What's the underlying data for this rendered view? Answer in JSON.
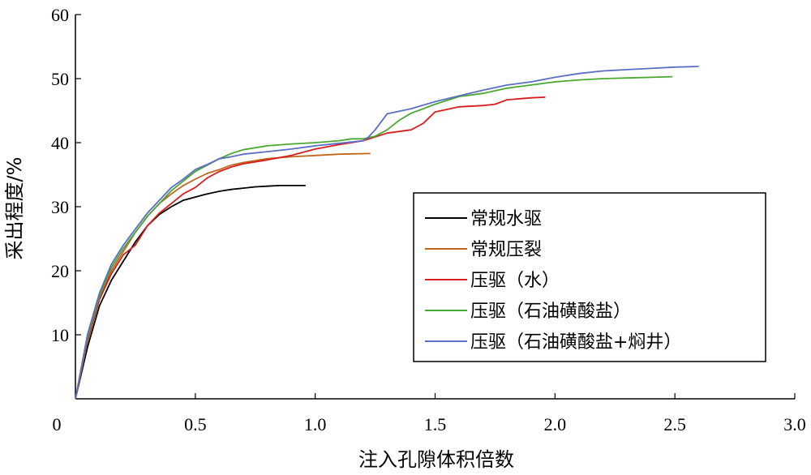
{
  "chart_data": {
    "type": "line",
    "xlabel": "注入孔隙体积倍数",
    "ylabel": "采出程度/%",
    "xlim": [
      0,
      3.0
    ],
    "ylim": [
      0,
      60
    ],
    "xticks": [
      "0",
      "0.5",
      "1.0",
      "1.5",
      "2.0",
      "2.5",
      "3.0"
    ],
    "xtick_values": [
      0,
      0.5,
      1.0,
      1.5,
      2.0,
      2.5,
      3.0
    ],
    "yticks": [
      "10",
      "20",
      "30",
      "40",
      "50",
      "60"
    ],
    "ytick_values": [
      10,
      20,
      30,
      40,
      50,
      60
    ],
    "grid": false,
    "legend_position": "center-right",
    "series": [
      {
        "name": "常规水驱",
        "color": "#000000",
        "points": [
          [
            0,
            0
          ],
          [
            0.05,
            8
          ],
          [
            0.1,
            14.5
          ],
          [
            0.15,
            18.5
          ],
          [
            0.2,
            21.5
          ],
          [
            0.25,
            24.5
          ],
          [
            0.3,
            27
          ],
          [
            0.35,
            28.8
          ],
          [
            0.4,
            30
          ],
          [
            0.45,
            31
          ],
          [
            0.5,
            31.5
          ],
          [
            0.55,
            32
          ],
          [
            0.6,
            32.4
          ],
          [
            0.65,
            32.7
          ],
          [
            0.7,
            32.9
          ],
          [
            0.75,
            33.1
          ],
          [
            0.8,
            33.2
          ],
          [
            0.85,
            33.3
          ],
          [
            0.9,
            33.3
          ],
          [
            0.96,
            33.3
          ]
        ]
      },
      {
        "name": "常规压裂",
        "color": "#c0661a",
        "points": [
          [
            0,
            0
          ],
          [
            0.05,
            9
          ],
          [
            0.1,
            15.5
          ],
          [
            0.15,
            20
          ],
          [
            0.2,
            23
          ],
          [
            0.25,
            26
          ],
          [
            0.3,
            28.5
          ],
          [
            0.35,
            30.5
          ],
          [
            0.4,
            32
          ],
          [
            0.45,
            33.3
          ],
          [
            0.5,
            34.3
          ],
          [
            0.55,
            35.2
          ],
          [
            0.6,
            35.8
          ],
          [
            0.65,
            36.5
          ],
          [
            0.7,
            36.9
          ],
          [
            0.75,
            37.2
          ],
          [
            0.8,
            37.5
          ],
          [
            0.9,
            37.8
          ],
          [
            1.0,
            38
          ],
          [
            1.1,
            38.2
          ],
          [
            1.23,
            38.3
          ]
        ]
      },
      {
        "name": "压驱（水）",
        "color": "#d81e1e",
        "points": [
          [
            0,
            0
          ],
          [
            0.05,
            9
          ],
          [
            0.1,
            15.5
          ],
          [
            0.15,
            19.5
          ],
          [
            0.2,
            22.5
          ],
          [
            0.25,
            24
          ],
          [
            0.3,
            27
          ],
          [
            0.35,
            29
          ],
          [
            0.4,
            30.5
          ],
          [
            0.45,
            32
          ],
          [
            0.5,
            33
          ],
          [
            0.55,
            34.5
          ],
          [
            0.6,
            35.5
          ],
          [
            0.65,
            36.2
          ],
          [
            0.7,
            36.7
          ],
          [
            0.8,
            37.3
          ],
          [
            0.9,
            38
          ],
          [
            1.0,
            39
          ],
          [
            1.1,
            39.7
          ],
          [
            1.2,
            40.3
          ],
          [
            1.3,
            41.5
          ],
          [
            1.4,
            42
          ],
          [
            1.45,
            43
          ],
          [
            1.5,
            44.8
          ],
          [
            1.6,
            45.6
          ],
          [
            1.7,
            45.8
          ],
          [
            1.75,
            46
          ],
          [
            1.8,
            46.7
          ],
          [
            1.9,
            47
          ],
          [
            1.96,
            47.1
          ]
        ]
      },
      {
        "name": "压驱（石油磺酸盐）",
        "color": "#4aa832",
        "points": [
          [
            0,
            0
          ],
          [
            0.05,
            9.5
          ],
          [
            0.1,
            16
          ],
          [
            0.15,
            20.5
          ],
          [
            0.2,
            23.5
          ],
          [
            0.25,
            26
          ],
          [
            0.3,
            28.5
          ],
          [
            0.35,
            30.5
          ],
          [
            0.4,
            32.5
          ],
          [
            0.45,
            34
          ],
          [
            0.5,
            35.5
          ],
          [
            0.55,
            36.5
          ],
          [
            0.6,
            37.5
          ],
          [
            0.65,
            38.3
          ],
          [
            0.7,
            38.9
          ],
          [
            0.8,
            39.5
          ],
          [
            0.9,
            39.8
          ],
          [
            1.0,
            40
          ],
          [
            1.1,
            40.3
          ],
          [
            1.15,
            40.6
          ],
          [
            1.2,
            40.6
          ],
          [
            1.25,
            41
          ],
          [
            1.3,
            42
          ],
          [
            1.35,
            43.5
          ],
          [
            1.4,
            44.6
          ],
          [
            1.5,
            46
          ],
          [
            1.6,
            47.2
          ],
          [
            1.7,
            47.7
          ],
          [
            1.8,
            48.5
          ],
          [
            1.9,
            49
          ],
          [
            2.0,
            49.5
          ],
          [
            2.1,
            49.8
          ],
          [
            2.2,
            50
          ],
          [
            2.3,
            50.1
          ],
          [
            2.4,
            50.2
          ],
          [
            2.49,
            50.3
          ]
        ]
      },
      {
        "name": "压驱（石油磺酸盐+焖井）",
        "color": "#5a6ec4",
        "points": [
          [
            0,
            0
          ],
          [
            0.05,
            10
          ],
          [
            0.1,
            16.5
          ],
          [
            0.15,
            21
          ],
          [
            0.2,
            24
          ],
          [
            0.25,
            26.5
          ],
          [
            0.3,
            29
          ],
          [
            0.35,
            31
          ],
          [
            0.4,
            33
          ],
          [
            0.45,
            34.3
          ],
          [
            0.5,
            35.8
          ],
          [
            0.55,
            36.6
          ],
          [
            0.6,
            37.5
          ],
          [
            0.65,
            37.8
          ],
          [
            0.7,
            38.2
          ],
          [
            0.8,
            38.6
          ],
          [
            0.9,
            39
          ],
          [
            1.0,
            39.5
          ],
          [
            1.1,
            39.9
          ],
          [
            1.2,
            40.3
          ],
          [
            1.22,
            40.8
          ],
          [
            1.25,
            42
          ],
          [
            1.3,
            44.5
          ],
          [
            1.4,
            45.3
          ],
          [
            1.5,
            46.4
          ],
          [
            1.6,
            47.3
          ],
          [
            1.7,
            48.2
          ],
          [
            1.8,
            49
          ],
          [
            1.9,
            49.5
          ],
          [
            2.0,
            50.2
          ],
          [
            2.1,
            50.8
          ],
          [
            2.2,
            51.2
          ],
          [
            2.3,
            51.4
          ],
          [
            2.4,
            51.6
          ],
          [
            2.5,
            51.8
          ],
          [
            2.6,
            51.9
          ]
        ]
      }
    ]
  }
}
